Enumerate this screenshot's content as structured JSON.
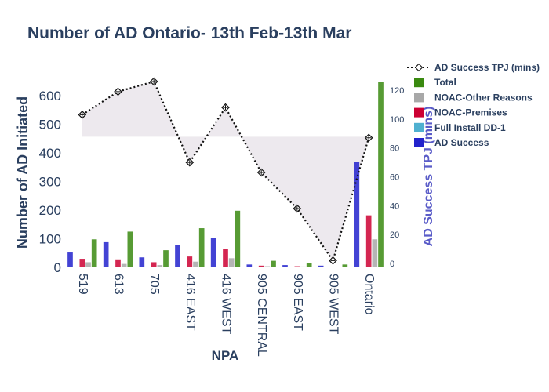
{
  "chart_data": {
    "type": "bar",
    "title": "Number of AD Ontario- 13th Feb-13th Mar",
    "xlabel": "NPA",
    "ylabel": "Number of AD Initiated",
    "y2label": "AD Success TPJ (mins)",
    "ylim": [
      0,
      650
    ],
    "y2lim": [
      0,
      126
    ],
    "yticks": [
      0,
      100,
      200,
      300,
      400,
      500,
      600
    ],
    "y2ticks": [
      0,
      20,
      40,
      60,
      80,
      100,
      120
    ],
    "categories": [
      "519",
      "613",
      "705",
      "416 EAST",
      "416 WEST",
      "905 CENTRAL",
      "905 EAST",
      "905 WEST",
      "Ontario"
    ],
    "series": [
      {
        "name": "AD Success",
        "type": "bar",
        "color": "#2222cc",
        "values": [
          52,
          88,
          35,
          78,
          103,
          10,
          8,
          6,
          370
        ]
      },
      {
        "name": "Full Install DD-1",
        "type": "bar",
        "color": "#4fb0d0",
        "values": [
          0,
          0,
          0,
          0,
          0,
          0,
          0,
          0,
          0
        ]
      },
      {
        "name": "NOAC-Premises",
        "type": "bar",
        "color": "#cc0033",
        "values": [
          30,
          28,
          18,
          38,
          65,
          6,
          4,
          2,
          182
        ]
      },
      {
        "name": "NOAC-Other Reasons",
        "type": "bar",
        "color": "#a8a8a8",
        "values": [
          18,
          12,
          8,
          20,
          32,
          4,
          3,
          2,
          98
        ]
      },
      {
        "name": "Total",
        "type": "bar",
        "color": "#3a8a10",
        "values": [
          98,
          125,
          60,
          137,
          198,
          23,
          15,
          10,
          650
        ]
      },
      {
        "name": "AD Success TPJ (mins)",
        "type": "line",
        "axis": "y2",
        "color": "#111111",
        "values": [
          103,
          119,
          126,
          70,
          108,
          63,
          38,
          2,
          87
        ]
      }
    ],
    "legend_position": "top-right",
    "grid": false
  }
}
